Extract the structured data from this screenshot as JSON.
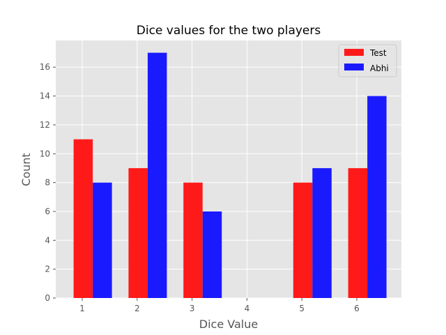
{
  "chart_data": {
    "type": "bar",
    "title": "Dice values for the two players",
    "xlabel": "Dice Value",
    "ylabel": "Count",
    "categories": [
      "1",
      "2",
      "3",
      "4",
      "5",
      "6"
    ],
    "series": [
      {
        "name": "Test",
        "color": "#ff1a1a",
        "values": [
          11,
          9,
          8,
          0,
          8,
          9
        ]
      },
      {
        "name": "Abhi",
        "color": "#1a1aff",
        "values": [
          8,
          17,
          6,
          0,
          9,
          14
        ]
      }
    ],
    "yticks": [
      "0",
      "2",
      "4",
      "6",
      "8",
      "10",
      "12",
      "14",
      "16"
    ],
    "ylim": [
      0,
      17.85
    ],
    "grid": true,
    "legend_position": "top-right",
    "style": {
      "axes_background": "#e5e5e5",
      "grid_color": "#ffffff",
      "tick_color": "#555555"
    }
  }
}
